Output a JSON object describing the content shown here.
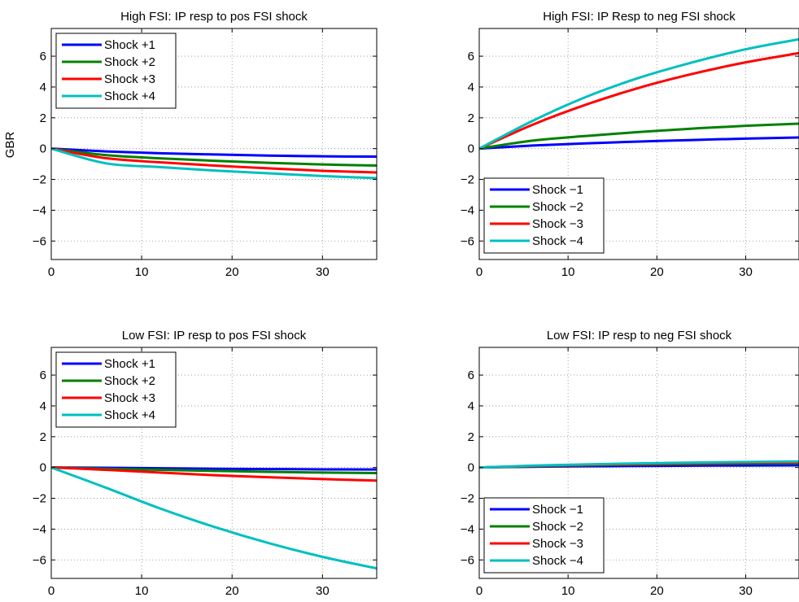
{
  "figure": {
    "ylabel": "GBR"
  },
  "chart_data": [
    {
      "type": "line",
      "title": "High FSI: IP resp to pos FSI shock",
      "xlim": [
        0,
        36
      ],
      "ylim": [
        -7.2,
        7.8
      ],
      "xticks": [
        0,
        10,
        20,
        30
      ],
      "yticks": [
        -6,
        -4,
        -2,
        0,
        2,
        4,
        6
      ],
      "ytick_labels": [
        "−6",
        "−4",
        "−2",
        "0",
        "2",
        "4",
        "6"
      ],
      "grid": true,
      "legend": "top-left",
      "x": [
        0,
        6,
        12,
        18,
        24,
        30,
        36
      ],
      "series": [
        {
          "name": "Shock +1",
          "color": "#0000ff",
          "values": [
            0,
            -0.18,
            -0.3,
            -0.38,
            -0.45,
            -0.5,
            -0.52
          ]
        },
        {
          "name": "Shock +2",
          "color": "#008000",
          "values": [
            0,
            -0.42,
            -0.63,
            -0.79,
            -0.92,
            -1.03,
            -1.1
          ]
        },
        {
          "name": "Shock +3",
          "color": "#ff0000",
          "values": [
            0,
            -0.62,
            -0.89,
            -1.1,
            -1.28,
            -1.44,
            -1.55
          ]
        },
        {
          "name": "Shock +4",
          "color": "#00bfbf",
          "values": [
            0,
            -0.95,
            -1.2,
            -1.42,
            -1.6,
            -1.78,
            -1.92
          ]
        }
      ]
    },
    {
      "type": "line",
      "title": "High FSI: IP Resp to neg FSI shock",
      "xlim": [
        0,
        36
      ],
      "ylim": [
        -7.2,
        7.8
      ],
      "xticks": [
        0,
        10,
        20,
        30
      ],
      "yticks": [
        -6,
        -4,
        -2,
        0,
        2,
        4,
        6
      ],
      "ytick_labels": [
        "−6",
        "−4",
        "−2",
        "0",
        "2",
        "4",
        "6"
      ],
      "grid": true,
      "legend": "bottom-left",
      "x": [
        0,
        6,
        12,
        18,
        24,
        30,
        36
      ],
      "series": [
        {
          "name": "Shock −1",
          "color": "#0000ff",
          "values": [
            0,
            0.2,
            0.34,
            0.46,
            0.56,
            0.65,
            0.72
          ]
        },
        {
          "name": "Shock −2",
          "color": "#008000",
          "values": [
            0,
            0.52,
            0.82,
            1.08,
            1.3,
            1.48,
            1.62
          ]
        },
        {
          "name": "Shock −3",
          "color": "#ff0000",
          "values": [
            0,
            1.55,
            2.85,
            3.95,
            4.85,
            5.6,
            6.2
          ]
        },
        {
          "name": "Shock −4",
          "color": "#00bfbf",
          "values": [
            0,
            1.8,
            3.35,
            4.6,
            5.6,
            6.45,
            7.1
          ]
        }
      ]
    },
    {
      "type": "line",
      "title": "Low FSI: IP resp to pos FSI shock",
      "xlim": [
        0,
        36
      ],
      "ylim": [
        -7.2,
        7.8
      ],
      "xticks": [
        0,
        10,
        20,
        30
      ],
      "yticks": [
        -6,
        -4,
        -2,
        0,
        2,
        4,
        6
      ],
      "ytick_labels": [
        "−6",
        "−4",
        "−2",
        "0",
        "2",
        "4",
        "6"
      ],
      "grid": true,
      "legend": "top-left",
      "x": [
        0,
        6,
        12,
        18,
        24,
        30,
        36
      ],
      "series": [
        {
          "name": "Shock +1",
          "color": "#0000ff",
          "values": [
            0,
            -0.02,
            -0.05,
            -0.08,
            -0.1,
            -0.12,
            -0.13
          ]
        },
        {
          "name": "Shock +2",
          "color": "#008000",
          "values": [
            0,
            -0.08,
            -0.15,
            -0.22,
            -0.28,
            -0.33,
            -0.36
          ]
        },
        {
          "name": "Shock +3",
          "color": "#ff0000",
          "values": [
            0,
            -0.15,
            -0.33,
            -0.5,
            -0.63,
            -0.75,
            -0.85
          ]
        },
        {
          "name": "Shock +4",
          "color": "#00bfbf",
          "values": [
            0,
            -1.3,
            -2.65,
            -3.85,
            -4.9,
            -5.8,
            -6.55
          ]
        }
      ]
    },
    {
      "type": "line",
      "title": "Low FSI: IP resp to neg FSI shock",
      "xlim": [
        0,
        36
      ],
      "ylim": [
        -7.2,
        7.8
      ],
      "xticks": [
        0,
        10,
        20,
        30
      ],
      "yticks": [
        -6,
        -4,
        -2,
        0,
        2,
        4,
        6
      ],
      "ytick_labels": [
        "−6",
        "−4",
        "−2",
        "0",
        "2",
        "4",
        "6"
      ],
      "grid": true,
      "legend": "bottom-left",
      "x": [
        0,
        6,
        12,
        18,
        24,
        30,
        36
      ],
      "series": [
        {
          "name": "Shock −1",
          "color": "#0000ff",
          "values": [
            0,
            0.05,
            0.08,
            0.1,
            0.12,
            0.13,
            0.14
          ]
        },
        {
          "name": "Shock −2",
          "color": "#008000",
          "values": [
            0,
            0.08,
            0.14,
            0.19,
            0.23,
            0.26,
            0.28
          ]
        },
        {
          "name": "Shock −3",
          "color": "#ff0000",
          "values": [
            0,
            0.1,
            0.17,
            0.23,
            0.28,
            0.31,
            0.33
          ]
        },
        {
          "name": "Shock −4",
          "color": "#00bfbf",
          "values": [
            0,
            0.12,
            0.2,
            0.27,
            0.32,
            0.36,
            0.39
          ]
        }
      ]
    }
  ]
}
